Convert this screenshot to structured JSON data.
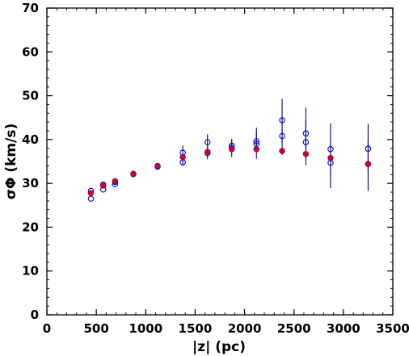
{
  "chart_data": {
    "type": "scatter",
    "xlabel": "|z| (pc)",
    "ylabel": "σΦ (km/s)",
    "xlim": [
      0,
      3500
    ],
    "ylim": [
      0,
      70
    ],
    "xticks": [
      0,
      500,
      1000,
      1500,
      2000,
      2500,
      3000,
      3500
    ],
    "yticks": [
      0,
      10,
      20,
      30,
      40,
      50,
      60,
      70
    ],
    "x_minor_step": 100,
    "y_minor_step": 2,
    "grid": false,
    "colors": {
      "open_markers": "#0000cc",
      "error_bars": "#00008b",
      "filled_markers": "#cc0033",
      "axes": "#000000"
    },
    "series": [
      {
        "marker": "open-circle",
        "points": [
          {
            "x": 445,
            "y": 26.5
          },
          {
            "x": 445,
            "y": 28.3
          },
          {
            "x": 570,
            "y": 28.6
          },
          {
            "x": 570,
            "y": 29.7
          },
          {
            "x": 690,
            "y": 29.8
          },
          {
            "x": 690,
            "y": 30.3
          },
          {
            "x": 875,
            "y": 32.1
          },
          {
            "x": 1120,
            "y": 33.8
          },
          {
            "x": 1375,
            "y": 34.8,
            "err": [
              34.0,
              35.6
            ]
          },
          {
            "x": 1375,
            "y": 37.0,
            "err": [
              35.3,
              38.6
            ]
          },
          {
            "x": 1625,
            "y": 36.9,
            "err": [
              35.5,
              38.2
            ]
          },
          {
            "x": 1625,
            "y": 39.4,
            "err": [
              37.6,
              41.2
            ]
          },
          {
            "x": 1870,
            "y": 38.1,
            "err": [
              36.0,
              40.1
            ]
          },
          {
            "x": 1870,
            "y": 38.6,
            "err": [
              37.0,
              40.1
            ]
          },
          {
            "x": 2120,
            "y": 39.0,
            "err": [
              35.6,
              42.7
            ]
          },
          {
            "x": 2120,
            "y": 39.6,
            "err": [
              37.2,
              42.0
            ]
          },
          {
            "x": 2380,
            "y": 40.8,
            "err": [
              36.5,
              45.1
            ]
          },
          {
            "x": 2380,
            "y": 44.4,
            "err": [
              39.4,
              49.3
            ]
          },
          {
            "x": 2620,
            "y": 39.4,
            "err": [
              34.2,
              44.5
            ]
          },
          {
            "x": 2620,
            "y": 41.4,
            "err": [
              35.6,
              47.3
            ]
          },
          {
            "x": 2870,
            "y": 34.7,
            "err": [
              28.9,
              40.4
            ]
          },
          {
            "x": 2870,
            "y": 37.8,
            "err": [
              31.9,
              43.7
            ]
          },
          {
            "x": 3250,
            "y": 34.4,
            "err": [
              28.3,
              40.3
            ]
          },
          {
            "x": 3250,
            "y": 37.9,
            "err": [
              32.3,
              43.6
            ]
          }
        ]
      },
      {
        "marker": "filled-circle",
        "points": [
          {
            "x": 445,
            "y": 27.8
          },
          {
            "x": 570,
            "y": 29.5
          },
          {
            "x": 690,
            "y": 30.5
          },
          {
            "x": 875,
            "y": 32.2
          },
          {
            "x": 1120,
            "y": 34.0
          },
          {
            "x": 1375,
            "y": 36.0
          },
          {
            "x": 1625,
            "y": 37.2
          },
          {
            "x": 1870,
            "y": 37.8
          },
          {
            "x": 2120,
            "y": 37.8
          },
          {
            "x": 2380,
            "y": 37.4
          },
          {
            "x": 2620,
            "y": 36.7
          },
          {
            "x": 2870,
            "y": 35.8
          },
          {
            "x": 3250,
            "y": 34.4
          }
        ]
      }
    ]
  }
}
